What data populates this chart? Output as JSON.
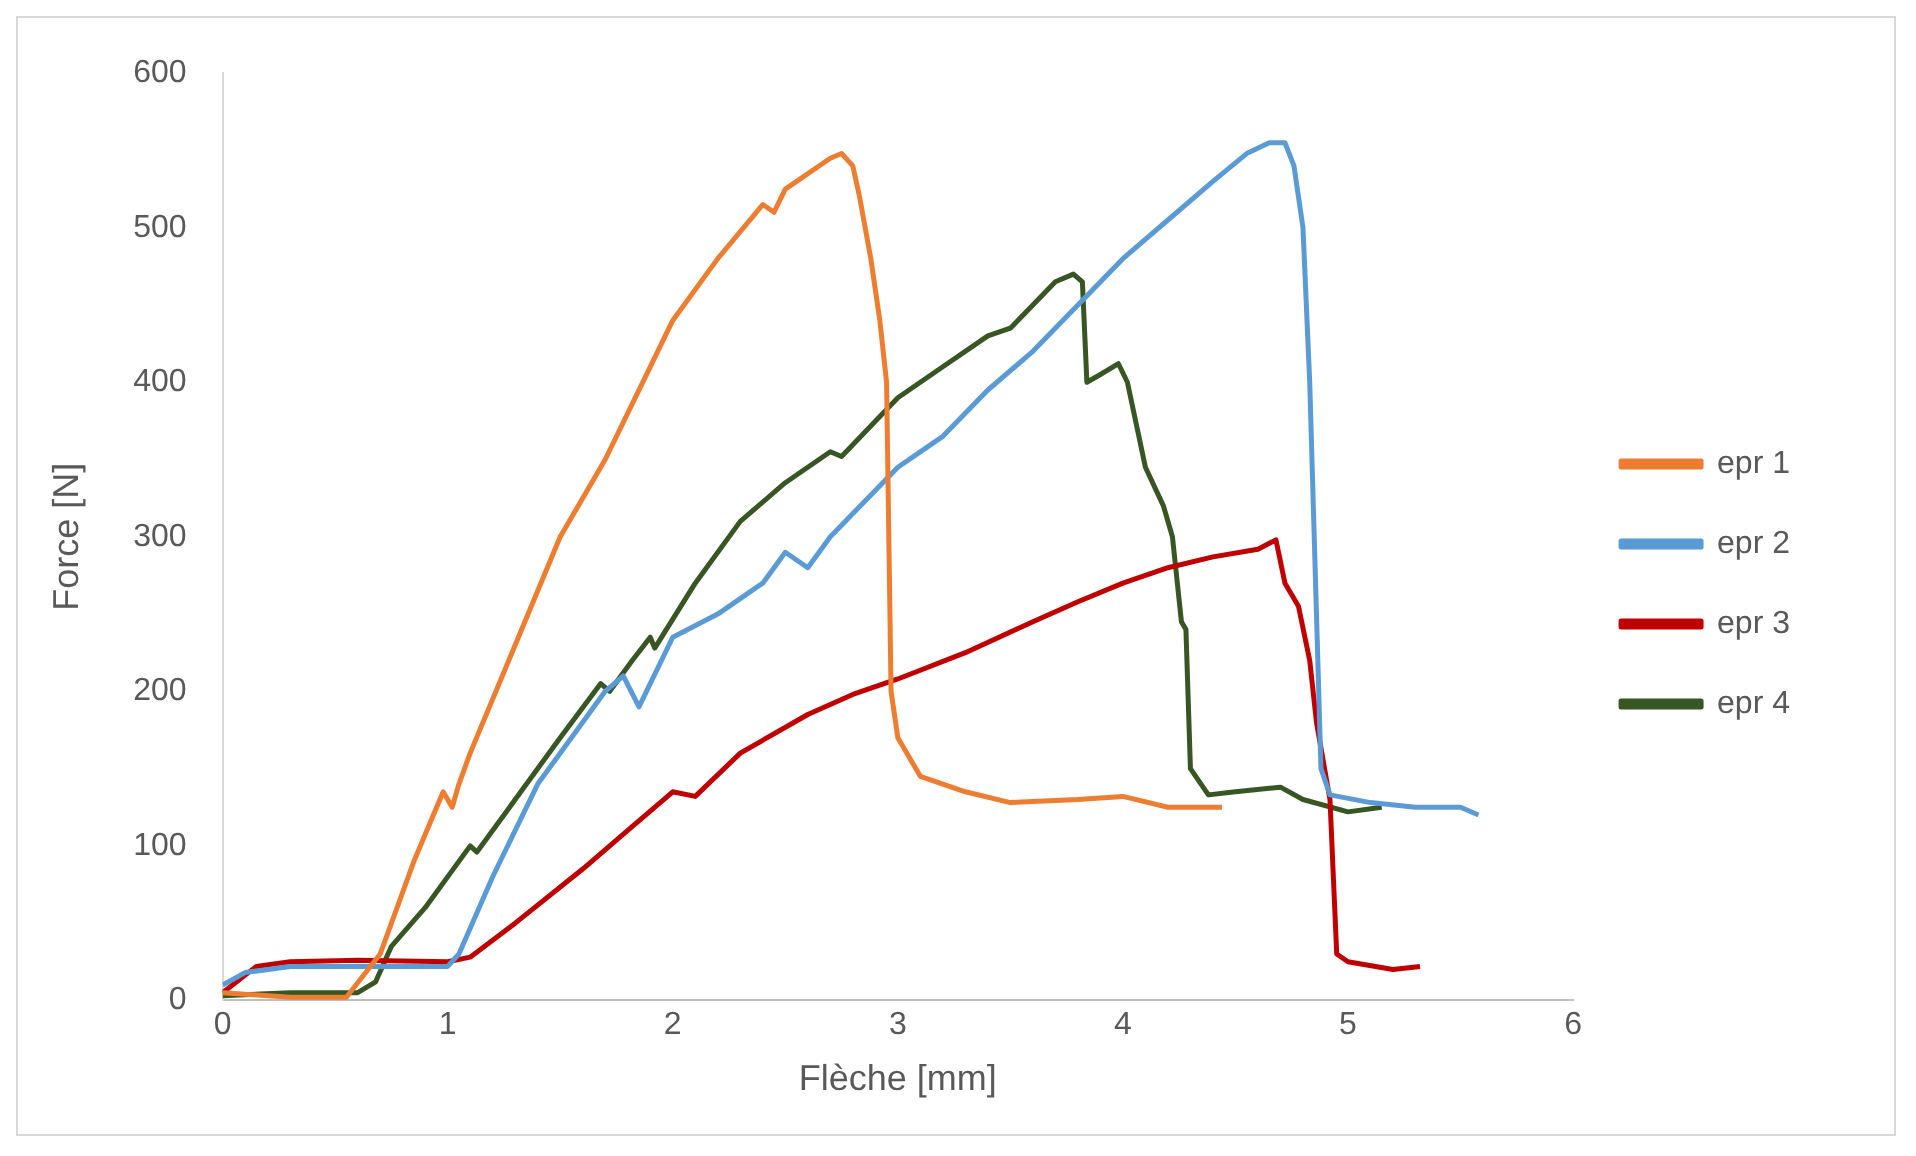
{
  "chart_data": {
    "type": "line",
    "xlabel": "Flèche [mm]",
    "ylabel": "Force [N]",
    "xlim": [
      0,
      6
    ],
    "ylim": [
      0,
      600
    ],
    "xticks": [
      0,
      1,
      2,
      3,
      4,
      5,
      6
    ],
    "yticks": [
      0,
      100,
      200,
      300,
      400,
      500,
      600
    ],
    "grid": false,
    "legend": "right",
    "marker": "none",
    "line_style": "solid",
    "series": [
      {
        "name": "epr 1",
        "color": "#ed7d31",
        "x": [
          0,
          0.3,
          0.55,
          0.7,
          0.85,
          0.98,
          1.02,
          1.05,
          1.1,
          1.3,
          1.5,
          1.7,
          1.9,
          2.0,
          2.2,
          2.4,
          2.45,
          2.5,
          2.7,
          2.75,
          2.8,
          2.83,
          2.88,
          2.92,
          2.95,
          2.96,
          2.97,
          3.0,
          3.1,
          3.3,
          3.5,
          3.8,
          4.0,
          4.2,
          4.44
        ],
        "values": [
          5,
          2,
          2,
          30,
          90,
          135,
          125,
          140,
          160,
          230,
          300,
          350,
          410,
          440,
          480,
          515,
          510,
          525,
          545,
          548,
          540,
          520,
          480,
          440,
          400,
          300,
          200,
          170,
          145,
          135,
          128,
          130,
          132,
          125,
          125
        ]
      },
      {
        "name": "epr 2",
        "color": "#5b9bd5",
        "x": [
          0,
          0.1,
          0.3,
          1.0,
          1.05,
          1.2,
          1.4,
          1.6,
          1.7,
          1.78,
          1.85,
          1.9,
          2.0,
          2.2,
          2.4,
          2.5,
          2.6,
          2.7,
          2.9,
          3.0,
          3.2,
          3.4,
          3.6,
          3.8,
          4.0,
          4.2,
          4.4,
          4.55,
          4.65,
          4.72,
          4.76,
          4.8,
          4.83,
          4.85,
          4.88,
          4.92,
          5.1,
          5.3,
          5.5,
          5.58
        ],
        "values": [
          10,
          18,
          22,
          22,
          30,
          80,
          140,
          180,
          200,
          210,
          190,
          205,
          235,
          250,
          270,
          290,
          280,
          300,
          330,
          345,
          365,
          395,
          420,
          450,
          480,
          505,
          530,
          548,
          555,
          555,
          540,
          500,
          400,
          300,
          150,
          133,
          128,
          125,
          125,
          120
        ]
      },
      {
        "name": "epr 3",
        "color": "#c00000",
        "x": [
          0,
          0.15,
          0.3,
          0.6,
          1.0,
          1.1,
          1.3,
          1.6,
          1.8,
          2.0,
          2.1,
          2.3,
          2.6,
          2.8,
          3.0,
          3.3,
          3.6,
          3.8,
          4.0,
          4.2,
          4.4,
          4.6,
          4.68,
          4.72,
          4.78,
          4.83,
          4.86,
          4.92,
          4.95,
          5.0,
          5.2,
          5.32
        ],
        "values": [
          5,
          22,
          25,
          26,
          25,
          28,
          50,
          85,
          110,
          135,
          132,
          160,
          185,
          198,
          208,
          225,
          245,
          258,
          270,
          280,
          287,
          292,
          298,
          270,
          255,
          220,
          180,
          130,
          30,
          25,
          20,
          22
        ]
      },
      {
        "name": "epr 4",
        "color": "#375623",
        "x": [
          0,
          0.3,
          0.6,
          0.68,
          0.75,
          0.9,
          1.1,
          1.13,
          1.3,
          1.5,
          1.68,
          1.72,
          1.82,
          1.9,
          1.92,
          2.1,
          2.3,
          2.5,
          2.7,
          2.75,
          3.0,
          3.2,
          3.4,
          3.5,
          3.6,
          3.7,
          3.78,
          3.82,
          3.84,
          3.9,
          3.98,
          4.02,
          4.1,
          4.18,
          4.22,
          4.26,
          4.28,
          4.3,
          4.38,
          4.5,
          4.7,
          4.8,
          5.0,
          5.15
        ],
        "values": [
          3,
          5,
          5,
          12,
          35,
          60,
          100,
          96,
          130,
          170,
          205,
          200,
          220,
          235,
          228,
          270,
          310,
          335,
          355,
          352,
          390,
          410,
          430,
          435,
          450,
          465,
          470,
          465,
          400,
          405,
          412,
          400,
          345,
          320,
          300,
          245,
          240,
          150,
          133,
          135,
          138,
          130,
          122,
          125
        ]
      }
    ]
  }
}
